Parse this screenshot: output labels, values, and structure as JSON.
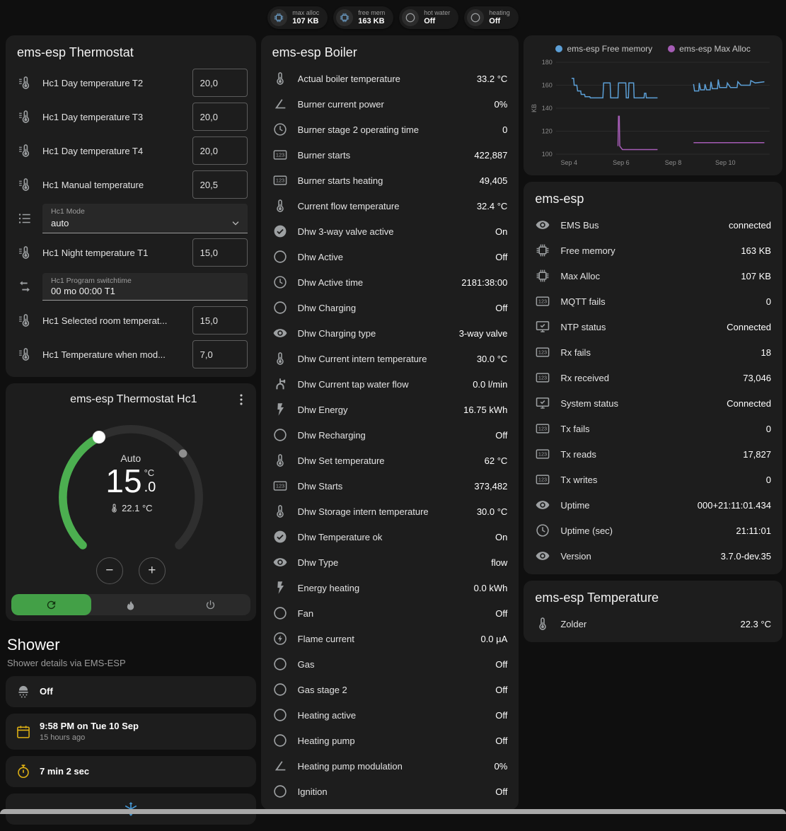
{
  "colors": {
    "accent_green": "#43a047",
    "track_grey": "#2f2f2f",
    "card_bg": "#1d1d1d",
    "icon_grey": "#9da0a2",
    "warning_yellow": "#dfb114",
    "info_blue": "#4596d1"
  },
  "header": {
    "chips": [
      {
        "icon": "chip",
        "icon_color": "#6fa3cf",
        "label": "max alloc",
        "value": "107 KB"
      },
      {
        "icon": "chip",
        "icon_color": "#6fa3cf",
        "label": "free mem",
        "value": "163 KB"
      },
      {
        "icon": "circle",
        "icon_color": "#9da0a2",
        "label": "hot water",
        "value": "Off"
      },
      {
        "icon": "circle",
        "icon_color": "#9da0a2",
        "label": "heating",
        "value": "Off"
      }
    ]
  },
  "thermostat_card": {
    "title": "ems-esp Thermostat",
    "rows": [
      {
        "icon": "thermometer-lines",
        "label": "Hc1 Day temperature T2",
        "value": "20,0",
        "control": "number"
      },
      {
        "icon": "thermometer-lines",
        "label": "Hc1 Day temperature T3",
        "value": "20,0",
        "control": "number"
      },
      {
        "icon": "thermometer-lines",
        "label": "Hc1 Day temperature T4",
        "value": "20,0",
        "control": "number"
      },
      {
        "icon": "thermometer-lines",
        "label": "Hc1 Manual temperature",
        "value": "20,5",
        "control": "number"
      },
      {
        "icon": "list",
        "label": "Hc1 Mode",
        "value": "auto",
        "control": "select"
      },
      {
        "icon": "thermometer-lines",
        "label": "Hc1 Night temperature T1",
        "value": "15,0",
        "control": "number"
      },
      {
        "icon": "swap",
        "label": "Hc1 Program switchtime",
        "value": "00 mo 00:00 T1",
        "control": "text"
      },
      {
        "icon": "thermometer-lines",
        "label": "Hc1 Selected room temperat...",
        "value": "15,0",
        "control": "number"
      },
      {
        "icon": "thermometer-lines",
        "label": "Hc1 Temperature when mod...",
        "value": "7,0",
        "control": "number"
      }
    ]
  },
  "hc1_card": {
    "title": "ems-esp Thermostat Hc1",
    "mode_label": "Auto",
    "temp_int": "15",
    "temp_dec": ".0",
    "temp_unit": "°C",
    "current_temp": "22.1 °C",
    "decrease_label": "−",
    "increase_label": "+",
    "modes": [
      {
        "name": "auto",
        "icon": "refresh-auto",
        "active": true
      },
      {
        "name": "heat",
        "icon": "fire",
        "active": false
      },
      {
        "name": "off",
        "icon": "power",
        "active": false
      }
    ]
  },
  "shower": {
    "title": "Shower",
    "subtitle": "Shower details via EMS-ESP",
    "tiles": [
      {
        "icon": "shower",
        "icon_color": "#9da0a2",
        "primary": "Off",
        "secondary": "",
        "centered": false
      },
      {
        "icon": "calendar",
        "icon_color": "#dfb114",
        "primary": "9:58 PM on Tue 10 Sep",
        "secondary": "15 hours ago",
        "centered": false
      },
      {
        "icon": "timer",
        "icon_color": "#dfb114",
        "primary": "7 min 2 sec",
        "secondary": "",
        "centered": false
      },
      {
        "icon": "snowflake",
        "icon_color": "#4596d1",
        "primary": "",
        "secondary": "",
        "centered": true
      }
    ]
  },
  "boiler_card": {
    "title": "ems-esp Boiler",
    "rows": [
      {
        "icon": "thermometer",
        "label": "Actual boiler temperature",
        "value": "33.2 °C"
      },
      {
        "icon": "angle",
        "label": "Burner current power",
        "value": "0%"
      },
      {
        "icon": "clock",
        "label": "Burner stage 2 operating time",
        "value": "0"
      },
      {
        "icon": "counter",
        "label": "Burner starts",
        "value": "422,887"
      },
      {
        "icon": "counter",
        "label": "Burner starts heating",
        "value": "49,405"
      },
      {
        "icon": "thermometer",
        "label": "Current flow temperature",
        "value": "32.4 °C"
      },
      {
        "icon": "check-circle",
        "label": "Dhw 3-way valve active",
        "value": "On"
      },
      {
        "icon": "circle",
        "label": "Dhw Active",
        "value": "Off"
      },
      {
        "icon": "clock",
        "label": "Dhw Active time",
        "value": "2181:38:00"
      },
      {
        "icon": "circle",
        "label": "Dhw Charging",
        "value": "Off"
      },
      {
        "icon": "eye",
        "label": "Dhw Charging type",
        "value": "3-way valve"
      },
      {
        "icon": "thermometer",
        "label": "Dhw Current intern temperature",
        "value": "30.0 °C"
      },
      {
        "icon": "pump",
        "label": "Dhw Current tap water flow",
        "value": "0.0 l/min"
      },
      {
        "icon": "flash",
        "label": "Dhw Energy",
        "value": "16.75 kWh"
      },
      {
        "icon": "circle",
        "label": "Dhw Recharging",
        "value": "Off"
      },
      {
        "icon": "thermometer",
        "label": "Dhw Set temperature",
        "value": "62 °C"
      },
      {
        "icon": "counter",
        "label": "Dhw Starts",
        "value": "373,482"
      },
      {
        "icon": "thermometer",
        "label": "Dhw Storage intern temperature",
        "value": "30.0 °C"
      },
      {
        "icon": "check-circle",
        "label": "Dhw Temperature ok",
        "value": "On"
      },
      {
        "icon": "eye",
        "label": "Dhw Type",
        "value": "flow"
      },
      {
        "icon": "flash",
        "label": "Energy heating",
        "value": "0.0 kWh"
      },
      {
        "icon": "circle",
        "label": "Fan",
        "value": "Off"
      },
      {
        "icon": "flash-circle",
        "label": "Flame current",
        "value": "0.0 µA"
      },
      {
        "icon": "circle",
        "label": "Gas",
        "value": "Off"
      },
      {
        "icon": "circle",
        "label": "Gas stage 2",
        "value": "Off"
      },
      {
        "icon": "circle",
        "label": "Heating active",
        "value": "Off"
      },
      {
        "icon": "circle",
        "label": "Heating pump",
        "value": "Off"
      },
      {
        "icon": "angle",
        "label": "Heating pump modulation",
        "value": "0%"
      },
      {
        "icon": "circle",
        "label": "Ignition",
        "value": "Off"
      }
    ]
  },
  "ems_card": {
    "title": "ems-esp",
    "rows": [
      {
        "icon": "eye",
        "label": "EMS Bus",
        "value": "connected"
      },
      {
        "icon": "chip",
        "label": "Free memory",
        "value": "163 KB"
      },
      {
        "icon": "chip",
        "label": "Max Alloc",
        "value": "107 KB"
      },
      {
        "icon": "counter",
        "label": "MQTT fails",
        "value": "0"
      },
      {
        "icon": "monitor-check",
        "label": "NTP status",
        "value": "Connected"
      },
      {
        "icon": "counter",
        "label": "Rx fails",
        "value": "18"
      },
      {
        "icon": "counter",
        "label": "Rx received",
        "value": "73,046"
      },
      {
        "icon": "monitor-check",
        "label": "System status",
        "value": "Connected"
      },
      {
        "icon": "counter",
        "label": "Tx fails",
        "value": "0"
      },
      {
        "icon": "counter",
        "label": "Tx reads",
        "value": "17,827"
      },
      {
        "icon": "counter",
        "label": "Tx writes",
        "value": "0"
      },
      {
        "icon": "eye",
        "label": "Uptime",
        "value": "000+21:11:01.434"
      },
      {
        "icon": "clock",
        "label": "Uptime (sec)",
        "value": "21:11:01"
      },
      {
        "icon": "eye",
        "label": "Version",
        "value": "3.7.0-dev.35"
      }
    ]
  },
  "temperature_card": {
    "title": "ems-esp Temperature",
    "rows": [
      {
        "icon": "thermometer",
        "label": "Zolder",
        "value": "22.3 °C"
      }
    ]
  },
  "chart_data": {
    "type": "line",
    "title": "",
    "ylabel": "KB",
    "ylim": [
      100,
      180
    ],
    "yticks": [
      100,
      120,
      140,
      160,
      180
    ],
    "xlim": [
      3.5,
      11.7
    ],
    "xticks": [
      {
        "x": 4,
        "label": "Sep 4"
      },
      {
        "x": 6,
        "label": "Sep 6"
      },
      {
        "x": 8,
        "label": "Sep 8"
      },
      {
        "x": 10,
        "label": "Sep 10"
      }
    ],
    "grid": true,
    "legend_position": "top",
    "series": [
      {
        "name": "ems-esp Free memory",
        "color": "#5c9fd6",
        "segments": [
          [
            [
              4.1,
              166
            ],
            [
              4.18,
              166
            ],
            [
              4.2,
              160
            ],
            [
              4.3,
              160
            ],
            [
              4.33,
              155
            ],
            [
              4.45,
              155
            ],
            [
              4.47,
              152
            ],
            [
              4.6,
              152
            ],
            [
              4.62,
              150
            ],
            [
              4.8,
              150
            ],
            [
              4.82,
              149
            ],
            [
              5.3,
              149
            ],
            [
              5.33,
              162
            ],
            [
              5.58,
              162
            ],
            [
              5.6,
              149
            ],
            [
              5.88,
              149
            ],
            [
              5.9,
              162
            ],
            [
              6.18,
              162
            ],
            [
              6.2,
              149
            ],
            [
              6.28,
              149
            ],
            [
              6.3,
              162
            ],
            [
              6.48,
              162
            ],
            [
              6.5,
              149
            ],
            [
              6.88,
              149
            ],
            [
              6.9,
              153
            ],
            [
              6.95,
              153
            ],
            [
              6.97,
              149
            ],
            [
              7.4,
              149
            ]
          ],
          [
            [
              8.78,
              161
            ],
            [
              8.82,
              155
            ],
            [
              8.98,
              155
            ],
            [
              9.0,
              162
            ],
            [
              9.05,
              156
            ],
            [
              9.2,
              156
            ],
            [
              9.22,
              161
            ],
            [
              9.28,
              156
            ],
            [
              9.42,
              156
            ],
            [
              9.45,
              163
            ],
            [
              9.5,
              157
            ],
            [
              9.7,
              157
            ],
            [
              9.73,
              165
            ],
            [
              9.78,
              158
            ],
            [
              10.05,
              158
            ],
            [
              10.08,
              162
            ],
            [
              10.2,
              158
            ],
            [
              10.45,
              158
            ],
            [
              10.48,
              163
            ],
            [
              10.6,
              160
            ],
            [
              10.95,
              160
            ],
            [
              10.98,
              164
            ],
            [
              11.15,
              162
            ],
            [
              11.5,
              163
            ]
          ]
        ]
      },
      {
        "name": "ems-esp Max Alloc",
        "color": "#a55cb5",
        "segments": [
          [
            [
              5.88,
              107
            ],
            [
              5.9,
              133
            ],
            [
              5.93,
              133
            ],
            [
              5.95,
              107
            ],
            [
              6.05,
              104
            ],
            [
              7.4,
              104
            ]
          ],
          [
            [
              8.78,
              110
            ],
            [
              11.5,
              110
            ]
          ]
        ]
      }
    ]
  }
}
